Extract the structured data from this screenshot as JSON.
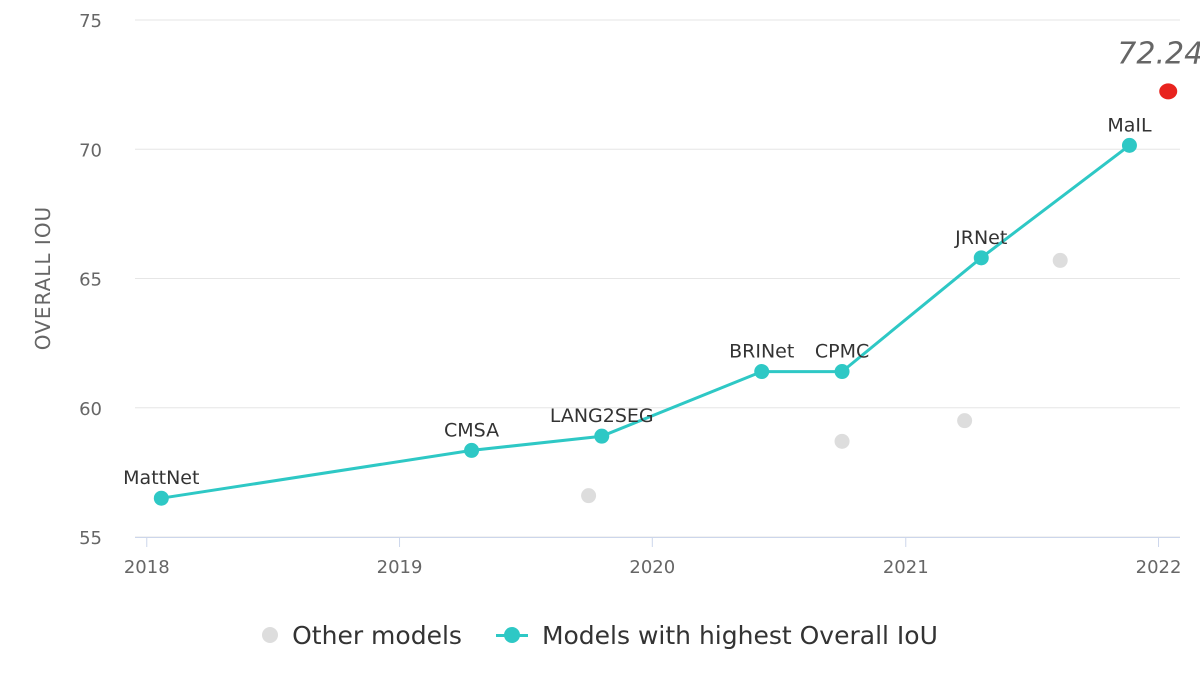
{
  "chart_data": {
    "type": "line",
    "xlabel": "",
    "ylabel": "OVERALL IOU",
    "ylim": [
      55,
      75
    ],
    "yticks": [
      55,
      60,
      65,
      70,
      75
    ],
    "xlim": [
      "2017-12-15",
      "2022-02-01"
    ],
    "xticks": [
      {
        "label": "2018",
        "date": "2018-01-01"
      },
      {
        "label": "2019",
        "date": "2019-01-01"
      },
      {
        "label": "2020",
        "date": "2020-01-01"
      },
      {
        "label": "2021",
        "date": "2021-01-01"
      },
      {
        "label": "2022",
        "date": "2022-01-01"
      }
    ],
    "grid": "horizontal",
    "legend_position": "bottom",
    "series": [
      {
        "name": "Other models",
        "type": "scatter",
        "color": "#dddddd",
        "points": [
          {
            "x": "2019-10-01",
            "y": 56.6
          },
          {
            "x": "2020-10-01",
            "y": 58.7
          },
          {
            "x": "2021-03-27",
            "y": 59.5
          },
          {
            "x": "2021-08-12",
            "y": 65.7
          }
        ]
      },
      {
        "name": "Models with highest Overall IoU",
        "type": "line",
        "color": "#2ec8c5",
        "points": [
          {
            "x": "2018-01-22",
            "y": 56.5,
            "label": "MattNet"
          },
          {
            "x": "2019-04-15",
            "y": 58.35,
            "label": "CMSA"
          },
          {
            "x": "2019-10-20",
            "y": 58.9,
            "label": "LANG2SEG"
          },
          {
            "x": "2020-06-07",
            "y": 61.4,
            "label": "BRINet"
          },
          {
            "x": "2020-10-01",
            "y": 61.4,
            "label": "CPMC"
          },
          {
            "x": "2021-04-20",
            "y": 65.8,
            "label": "JRNet"
          },
          {
            "x": "2021-11-20",
            "y": 70.15,
            "label": "MaIL"
          }
        ]
      }
    ],
    "annotations": [
      {
        "x": "2022-01-15",
        "y": 72.24,
        "text": "72.24",
        "color": "#e8231e"
      }
    ]
  }
}
